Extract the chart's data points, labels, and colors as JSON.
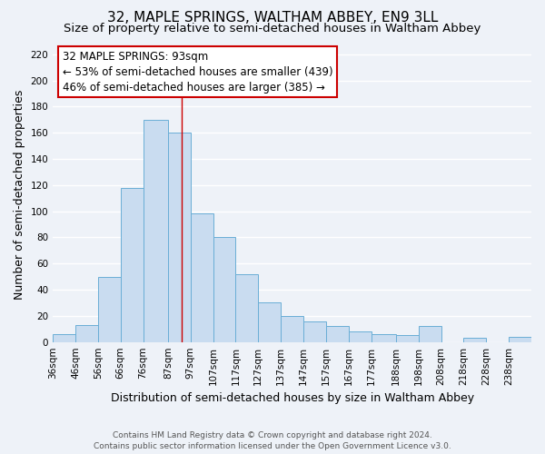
{
  "title": "32, MAPLE SPRINGS, WALTHAM ABBEY, EN9 3LL",
  "subtitle": "Size of property relative to semi-detached houses in Waltham Abbey",
  "xlabel": "Distribution of semi-detached houses by size in Waltham Abbey",
  "ylabel": "Number of semi-detached properties",
  "bin_labels": [
    "36sqm",
    "46sqm",
    "56sqm",
    "66sqm",
    "76sqm",
    "87sqm",
    "97sqm",
    "107sqm",
    "117sqm",
    "127sqm",
    "137sqm",
    "147sqm",
    "157sqm",
    "167sqm",
    "177sqm",
    "188sqm",
    "198sqm",
    "208sqm",
    "218sqm",
    "228sqm",
    "238sqm"
  ],
  "bin_edges": [
    36,
    46,
    56,
    66,
    76,
    87,
    97,
    107,
    117,
    127,
    137,
    147,
    157,
    167,
    177,
    188,
    198,
    208,
    218,
    228,
    238,
    248
  ],
  "bar_heights": [
    6,
    13,
    50,
    118,
    170,
    160,
    98,
    80,
    52,
    30,
    20,
    16,
    12,
    8,
    6,
    5,
    12,
    0,
    3,
    0,
    4
  ],
  "bar_color": "#c9dcf0",
  "bar_edge_color": "#6aaed6",
  "marker_value": 93,
  "marker_color": "#cc0000",
  "ylim": [
    0,
    225
  ],
  "yticks": [
    0,
    20,
    40,
    60,
    80,
    100,
    120,
    140,
    160,
    180,
    200,
    220
  ],
  "annotation_title": "32 MAPLE SPRINGS: 93sqm",
  "annotation_line1": "← 53% of semi-detached houses are smaller (439)",
  "annotation_line2": "46% of semi-detached houses are larger (385) →",
  "annotation_box_color": "#cc0000",
  "footer_line1": "Contains HM Land Registry data © Crown copyright and database right 2024.",
  "footer_line2": "Contains public sector information licensed under the Open Government Licence v3.0.",
  "background_color": "#eef2f8",
  "grid_color": "#ffffff",
  "title_fontsize": 11,
  "subtitle_fontsize": 9.5,
  "axis_label_fontsize": 9,
  "tick_fontsize": 7.5,
  "annotation_fontsize": 8.5,
  "footer_fontsize": 6.5
}
